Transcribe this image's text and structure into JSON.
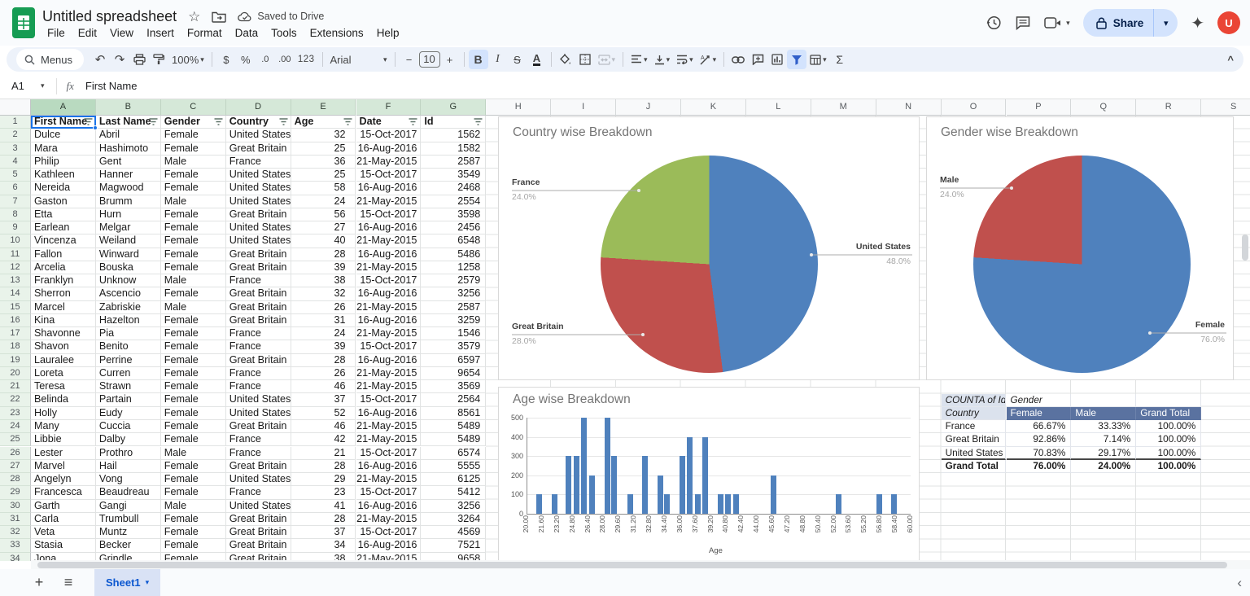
{
  "topbar": {
    "title": "Untitled spreadsheet",
    "saved": "Saved to Drive",
    "menus": [
      "File",
      "Edit",
      "View",
      "Insert",
      "Format",
      "Data",
      "Tools",
      "Extensions",
      "Help"
    ],
    "share": "Share",
    "avatar": "U"
  },
  "icons": {
    "star": "☆",
    "caret_down": "▾",
    "undo": "↶",
    "redo": "↷",
    "sigma": "Σ",
    "sparkle": "✦",
    "hamburger": "≡",
    "plus": "+",
    "chevron_left": "‹",
    "collapse_up": "^",
    "dollar": "$",
    "percent": "%",
    "dec_dec": ".0",
    "dec_inc": ".00",
    "num123": "123",
    "minus": "−",
    "bold": "B",
    "italic": "I",
    "strike": "S",
    "text_color": "A",
    "fx": "fx"
  },
  "toolbar": {
    "menus": "Menus",
    "zoom": "100%",
    "font": "Arial",
    "size": "10"
  },
  "formula_bar": {
    "ref": "A1",
    "value": "First Name"
  },
  "grid": {
    "column_letters": [
      "A",
      "B",
      "C",
      "D",
      "E",
      "F",
      "G",
      "H",
      "I",
      "J",
      "K",
      "L",
      "M",
      "N",
      "O",
      "P",
      "Q",
      "R",
      "S"
    ],
    "green_columns": 7,
    "headers": [
      "First Name",
      "Last Name",
      "Gender",
      "Country",
      "Age",
      "Date",
      "Id"
    ],
    "rows": [
      [
        "Dulce",
        "Abril",
        "Female",
        "United States",
        "32",
        "15-Oct-2017",
        "1562"
      ],
      [
        "Mara",
        "Hashimoto",
        "Female",
        "Great Britain",
        "25",
        "16-Aug-2016",
        "1582"
      ],
      [
        "Philip",
        "Gent",
        "Male",
        "France",
        "36",
        "21-May-2015",
        "2587"
      ],
      [
        "Kathleen",
        "Hanner",
        "Female",
        "United States",
        "25",
        "15-Oct-2017",
        "3549"
      ],
      [
        "Nereida",
        "Magwood",
        "Female",
        "United States",
        "58",
        "16-Aug-2016",
        "2468"
      ],
      [
        "Gaston",
        "Brumm",
        "Male",
        "United States",
        "24",
        "21-May-2015",
        "2554"
      ],
      [
        "Etta",
        "Hurn",
        "Female",
        "Great Britain",
        "56",
        "15-Oct-2017",
        "3598"
      ],
      [
        "Earlean",
        "Melgar",
        "Female",
        "United States",
        "27",
        "16-Aug-2016",
        "2456"
      ],
      [
        "Vincenza",
        "Weiland",
        "Female",
        "United States",
        "40",
        "21-May-2015",
        "6548"
      ],
      [
        "Fallon",
        "Winward",
        "Female",
        "Great Britain",
        "28",
        "16-Aug-2016",
        "5486"
      ],
      [
        "Arcelia",
        "Bouska",
        "Female",
        "Great Britain",
        "39",
        "21-May-2015",
        "1258"
      ],
      [
        "Franklyn",
        "Unknow",
        "Male",
        "France",
        "38",
        "15-Oct-2017",
        "2579"
      ],
      [
        "Sherron",
        "Ascencio",
        "Female",
        "Great Britain",
        "32",
        "16-Aug-2016",
        "3256"
      ],
      [
        "Marcel",
        "Zabriskie",
        "Male",
        "Great Britain",
        "26",
        "21-May-2015",
        "2587"
      ],
      [
        "Kina",
        "Hazelton",
        "Female",
        "Great Britain",
        "31",
        "16-Aug-2016",
        "3259"
      ],
      [
        "Shavonne",
        "Pia",
        "Female",
        "France",
        "24",
        "21-May-2015",
        "1546"
      ],
      [
        "Shavon",
        "Benito",
        "Female",
        "France",
        "39",
        "15-Oct-2017",
        "3579"
      ],
      [
        "Lauralee",
        "Perrine",
        "Female",
        "Great Britain",
        "28",
        "16-Aug-2016",
        "6597"
      ],
      [
        "Loreta",
        "Curren",
        "Female",
        "France",
        "26",
        "21-May-2015",
        "9654"
      ],
      [
        "Teresa",
        "Strawn",
        "Female",
        "France",
        "46",
        "21-May-2015",
        "3569"
      ],
      [
        "Belinda",
        "Partain",
        "Female",
        "United States",
        "37",
        "15-Oct-2017",
        "2564"
      ],
      [
        "Holly",
        "Eudy",
        "Female",
        "United States",
        "52",
        "16-Aug-2016",
        "8561"
      ],
      [
        "Many",
        "Cuccia",
        "Female",
        "Great Britain",
        "46",
        "21-May-2015",
        "5489"
      ],
      [
        "Libbie",
        "Dalby",
        "Female",
        "France",
        "42",
        "21-May-2015",
        "5489"
      ],
      [
        "Lester",
        "Prothro",
        "Male",
        "France",
        "21",
        "15-Oct-2017",
        "6574"
      ],
      [
        "Marvel",
        "Hail",
        "Female",
        "Great Britain",
        "28",
        "16-Aug-2016",
        "5555"
      ],
      [
        "Angelyn",
        "Vong",
        "Female",
        "United States",
        "29",
        "21-May-2015",
        "6125"
      ],
      [
        "Francesca",
        "Beaudreau",
        "Female",
        "France",
        "23",
        "15-Oct-2017",
        "5412"
      ],
      [
        "Garth",
        "Gangi",
        "Male",
        "United States",
        "41",
        "16-Aug-2016",
        "3256"
      ],
      [
        "Carla",
        "Trumbull",
        "Female",
        "Great Britain",
        "28",
        "21-May-2015",
        "3264"
      ],
      [
        "Veta",
        "Muntz",
        "Female",
        "Great Britain",
        "37",
        "15-Oct-2017",
        "4569"
      ],
      [
        "Stasia",
        "Becker",
        "Female",
        "Great Britain",
        "34",
        "16-Aug-2016",
        "7521"
      ],
      [
        "Jona",
        "Grindle",
        "Female",
        "Great Britain",
        "38",
        "21-May-2015",
        "9658"
      ]
    ]
  },
  "pivot": {
    "corner": "COUNTA of Id",
    "col_group": "Gender",
    "row_label": "Country",
    "col_headers": [
      "Female",
      "Male",
      "Grand Total"
    ],
    "rows": [
      [
        "France",
        "66.67%",
        "33.33%",
        "100.00%"
      ],
      [
        "Great Britain",
        "92.86%",
        "7.14%",
        "100.00%"
      ],
      [
        "United States",
        "70.83%",
        "29.17%",
        "100.00%"
      ]
    ],
    "total": [
      "Grand Total",
      "76.00%",
      "24.00%",
      "100.00%"
    ]
  },
  "chart_data": [
    {
      "type": "pie",
      "title": "Country wise Breakdown",
      "legend_position": "none",
      "slices": [
        {
          "label": "United States",
          "value": 48.0,
          "pct_text": "48.0%",
          "color": "#4f81bd"
        },
        {
          "label": "Great Britain",
          "value": 28.0,
          "pct_text": "28.0%",
          "color": "#c0504d"
        },
        {
          "label": "France",
          "value": 24.0,
          "pct_text": "24.0%",
          "color": "#9bbb59"
        }
      ]
    },
    {
      "type": "pie",
      "title": "Gender wise Breakdown",
      "legend_position": "none",
      "slices": [
        {
          "label": "Female",
          "value": 76.0,
          "pct_text": "76.0%",
          "color": "#4f81bd"
        },
        {
          "label": "Male",
          "value": 24.0,
          "pct_text": "24.0%",
          "color": "#c0504d"
        }
      ]
    },
    {
      "type": "bar",
      "title": "Age wise Breakdown",
      "xlabel": "Age",
      "ylabel": "",
      "bar_color": "#4f81bd",
      "grid": true,
      "xlim": [
        20,
        60
      ],
      "ylim": [
        0,
        500
      ],
      "yticks": [
        0,
        100,
        200,
        300,
        400,
        500
      ],
      "xtick_labels": [
        "20.00",
        "21.60",
        "23.20",
        "24.80",
        "26.40",
        "28.00",
        "29.60",
        "31.20",
        "32.80",
        "34.40",
        "36.00",
        "37.60",
        "39.20",
        "40.80",
        "42.40",
        "44.00",
        "45.60",
        "47.20",
        "48.80",
        "50.40",
        "52.00",
        "53.60",
        "55.20",
        "56.80",
        "58.40",
        "60.00"
      ],
      "bars": [
        {
          "x": 21.3,
          "v": 100
        },
        {
          "x": 22.9,
          "v": 100
        },
        {
          "x": 24.4,
          "v": 300
        },
        {
          "x": 25.2,
          "v": 300
        },
        {
          "x": 26.0,
          "v": 500
        },
        {
          "x": 26.8,
          "v": 200
        },
        {
          "x": 28.4,
          "v": 500
        },
        {
          "x": 29.1,
          "v": 300
        },
        {
          "x": 30.8,
          "v": 100
        },
        {
          "x": 32.3,
          "v": 300
        },
        {
          "x": 33.9,
          "v": 200
        },
        {
          "x": 34.6,
          "v": 100
        },
        {
          "x": 36.2,
          "v": 300
        },
        {
          "x": 37.0,
          "v": 400
        },
        {
          "x": 37.8,
          "v": 100
        },
        {
          "x": 38.6,
          "v": 400
        },
        {
          "x": 40.2,
          "v": 100
        },
        {
          "x": 41.0,
          "v": 100
        },
        {
          "x": 41.8,
          "v": 100
        },
        {
          "x": 45.7,
          "v": 200
        },
        {
          "x": 52.5,
          "v": 100
        },
        {
          "x": 56.7,
          "v": 100
        },
        {
          "x": 58.3,
          "v": 100
        }
      ]
    }
  ],
  "bottombar": {
    "sheet": "Sheet1"
  },
  "colors": {
    "accent_blue": "#1a73e8",
    "chip_blue": "#d3e3fd",
    "logo_green": "#169c53",
    "pivot_band": "#5a72a0",
    "excel_blue": "#4f81bd",
    "excel_red": "#c0504d",
    "excel_green": "#9bbb59"
  }
}
